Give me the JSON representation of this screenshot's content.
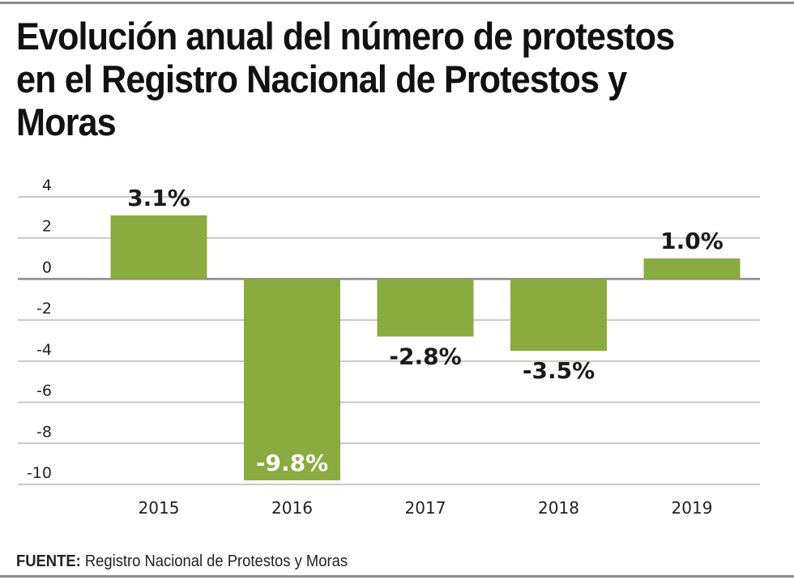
{
  "title": "Evolución anual del número de protestos en el Registro Nacional de Protestos y Moras",
  "source": {
    "label": "FUENTE:",
    "text": " Registro Nacional de Protestos y Moras"
  },
  "colors": {
    "bar": "#8aab3f",
    "grid": "#c8c8c8",
    "zero_line": "#8a8a8a",
    "label_dark": "#1a1a1a",
    "label_light": "#ffffff"
  },
  "chart_data": {
    "type": "bar",
    "title": "Evolución anual del número de protestos en el Registro Nacional de Protestos y Moras",
    "xlabel": "",
    "ylabel": "",
    "categories": [
      "2015",
      "2016",
      "2017",
      "2018",
      "2019"
    ],
    "values": [
      3.1,
      -9.8,
      -2.8,
      -3.5,
      1.0
    ],
    "data_labels": [
      "3.1%",
      "-9.8%",
      "-2.8%",
      "-3.5%",
      "1.0%"
    ],
    "ylim": [
      -10,
      4
    ],
    "yticks": [
      4,
      2,
      0,
      -2,
      -4,
      -6,
      -8,
      -10
    ],
    "ytick_labels": [
      "4",
      "2",
      "0",
      "-2",
      "-4",
      "-6",
      "-8",
      "-10"
    ],
    "grid": true,
    "legend": "none",
    "unit": "%"
  }
}
